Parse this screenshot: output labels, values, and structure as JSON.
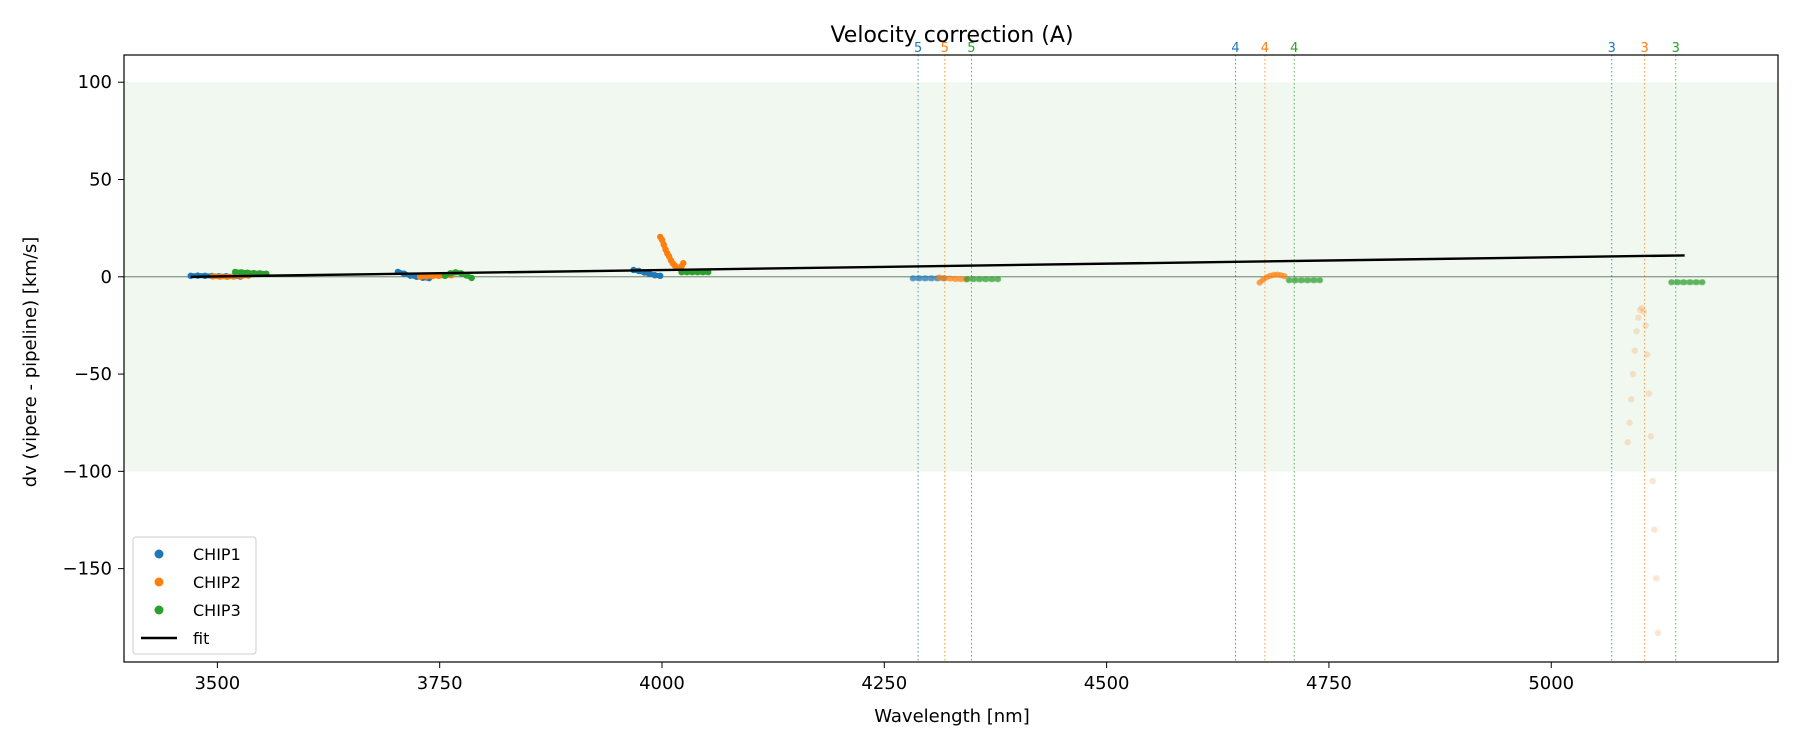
{
  "chart_data": {
    "type": "scatter",
    "title": "Velocity correction (A)",
    "xlabel": "Wavelength [nm]",
    "ylabel": "dv (vipere - pipeline) [km/s]",
    "xlim": [
      3395,
      5255
    ],
    "ylim": [
      -198,
      114
    ],
    "xticks": [
      3500,
      3750,
      4000,
      4250,
      4500,
      4750,
      5000
    ],
    "xtick_labels": [
      "3500",
      "3750",
      "4000",
      "4250",
      "4500",
      "4750",
      "5000"
    ],
    "yticks": [
      100,
      50,
      0,
      -50,
      -100,
      -150
    ],
    "ytick_labels": [
      "100",
      "50",
      "0",
      "−50",
      "−100",
      "−150"
    ],
    "band": [
      -100,
      100
    ],
    "band_color": "#e6f3e6",
    "zero_line": 0,
    "colors": {
      "CHIP1": "#1f77b4",
      "CHIP2": "#ff7f0e",
      "CHIP3": "#2ca02c",
      "fit": "#000000"
    },
    "legend": {
      "position": "lower-left",
      "entries": [
        {
          "label": "CHIP1",
          "kind": "marker",
          "color": "#1f77b4"
        },
        {
          "label": "CHIP2",
          "kind": "marker",
          "color": "#ff7f0e"
        },
        {
          "label": "CHIP3",
          "kind": "marker",
          "color": "#2ca02c"
        },
        {
          "label": "fit",
          "kind": "line",
          "color": "#000000"
        }
      ]
    },
    "fit": {
      "x": [
        3470,
        5150
      ],
      "y": [
        0,
        11
      ]
    },
    "order_lines": [
      {
        "x": 4288,
        "label": "5",
        "chip": "CHIP1"
      },
      {
        "x": 4318,
        "label": "5",
        "chip": "CHIP2"
      },
      {
        "x": 4348,
        "label": "5",
        "chip": "CHIP3"
      },
      {
        "x": 4645,
        "label": "4",
        "chip": "CHIP1"
      },
      {
        "x": 4678,
        "label": "4",
        "chip": "CHIP2"
      },
      {
        "x": 4711,
        "label": "4",
        "chip": "CHIP3"
      },
      {
        "x": 5068,
        "label": "3",
        "chip": "CHIP1"
      },
      {
        "x": 5105,
        "label": "3",
        "chip": "CHIP2"
      },
      {
        "x": 5140,
        "label": "3",
        "chip": "CHIP3"
      }
    ],
    "segments": [
      {
        "chip": "CHIP1",
        "alpha": 1.0,
        "x": [
          3470,
          3478,
          3486,
          3494,
          3502,
          3510,
          3518,
          3526
        ],
        "y": [
          0.5,
          0.6,
          0.5,
          0.4,
          0.3,
          0.3,
          0.2,
          0.1
        ]
      },
      {
        "chip": "CHIP2",
        "alpha": 1.0,
        "x": [
          3495,
          3503,
          3511,
          3519,
          3527,
          3535
        ],
        "y": [
          0.2,
          0.1,
          0.0,
          0.2,
          0.4,
          0.6
        ]
      },
      {
        "chip": "CHIP3",
        "alpha": 1.0,
        "x": [
          3520,
          3527,
          3534,
          3541,
          3548,
          3555
        ],
        "y": [
          2.5,
          2.3,
          2.1,
          1.9,
          1.8,
          1.6
        ]
      },
      {
        "chip": "CHIP1",
        "alpha": 1.0,
        "x": [
          3703,
          3710,
          3717,
          3724,
          3731,
          3738
        ],
        "y": [
          2.5,
          1.6,
          0.6,
          0.0,
          -0.5,
          -0.7
        ]
      },
      {
        "chip": "CHIP2",
        "alpha": 1.0,
        "x": [
          3728,
          3735,
          3742,
          3749,
          3756,
          3763
        ],
        "y": [
          0.0,
          0.2,
          0.4,
          0.5,
          0.6,
          0.8
        ]
      },
      {
        "chip": "CHIP3",
        "alpha": 1.0,
        "x": [
          3756,
          3762,
          3768,
          3774,
          3780,
          3786
        ],
        "y": [
          0.5,
          1.8,
          2.3,
          1.8,
          0.7,
          -0.6
        ]
      },
      {
        "chip": "CHIP1",
        "alpha": 1.0,
        "x": [
          3968,
          3974,
          3980,
          3986,
          3992,
          3998
        ],
        "y": [
          3.5,
          3.0,
          2.2,
          1.5,
          0.8,
          0.5
        ]
      },
      {
        "chip": "CHIP2",
        "alpha": 1.0,
        "x": [
          3998,
          4000,
          4002,
          4004,
          4006,
          4008,
          4010,
          4012,
          4014,
          4016,
          4018,
          4020,
          4022,
          4024
        ],
        "y": [
          20.5,
          19,
          16.5,
          14,
          12,
          10.5,
          8.5,
          7,
          6,
          5,
          4.5,
          4.5,
          5.5,
          7
        ]
      },
      {
        "chip": "CHIP3",
        "alpha": 1.0,
        "x": [
          4022,
          4028,
          4034,
          4040,
          4046,
          4052
        ],
        "y": [
          2.4,
          2.4,
          2.4,
          2.4,
          2.4,
          2.4
        ]
      },
      {
        "chip": "CHIP1",
        "alpha": 0.5,
        "x": [
          4282,
          4289,
          4296,
          4303,
          4310,
          4317
        ],
        "y": [
          -0.8,
          -0.8,
          -0.8,
          -0.8,
          -0.8,
          -0.8
        ]
      },
      {
        "chip": "CHIP2",
        "alpha": 0.5,
        "x": [
          4312,
          4318,
          4324,
          4330,
          4336,
          4342
        ],
        "y": [
          -0.4,
          -0.7,
          -0.9,
          -1.1,
          -1.2,
          -1.3
        ]
      },
      {
        "chip": "CHIP3",
        "alpha": 0.5,
        "x": [
          4343,
          4350,
          4357,
          4364,
          4371,
          4378
        ],
        "y": [
          -1.2,
          -1.2,
          -1.2,
          -1.2,
          -1.2,
          -1.2
        ]
      },
      {
        "chip": "CHIP2",
        "alpha": 0.5,
        "x": [
          4672,
          4676,
          4680,
          4684,
          4688,
          4692,
          4696,
          4700
        ],
        "y": [
          -3,
          -1.5,
          -0.2,
          0.5,
          1.0,
          1.1,
          0.8,
          0.3
        ]
      },
      {
        "chip": "CHIP3",
        "alpha": 0.5,
        "x": [
          4705,
          4712,
          4719,
          4726,
          4733,
          4740
        ],
        "y": [
          -1.8,
          -1.8,
          -1.8,
          -1.8,
          -1.8,
          -1.8
        ]
      },
      {
        "chip": "CHIP2",
        "alpha": 0.2,
        "x": [
          5086,
          5088,
          5090,
          5092,
          5094,
          5096,
          5098,
          5100,
          5102,
          5104,
          5106,
          5108,
          5110,
          5112,
          5114,
          5116,
          5118,
          5120
        ],
        "y": [
          -85,
          -75,
          -63,
          -50,
          -38,
          -28,
          -21,
          -17,
          -16,
          -18,
          -25,
          -40,
          -60,
          -82,
          -105,
          -130,
          -155,
          -183
        ]
      },
      {
        "chip": "CHIP3",
        "alpha": 0.5,
        "x": [
          5135,
          5142,
          5149,
          5156,
          5163,
          5170
        ],
        "y": [
          -2.8,
          -2.8,
          -2.8,
          -2.8,
          -2.8,
          -2.8
        ]
      }
    ]
  }
}
